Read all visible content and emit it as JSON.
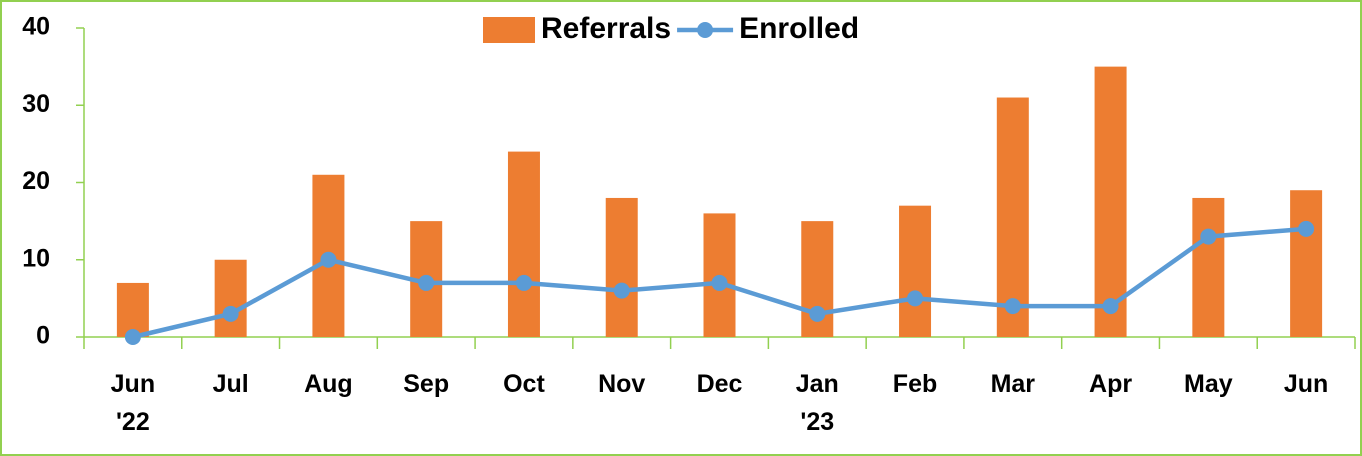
{
  "chart_data": {
    "type": "bar-line",
    "categories": [
      "Jun '22",
      "Jul",
      "Aug",
      "Sep",
      "Oct",
      "Nov",
      "Dec",
      "Jan '23",
      "Feb",
      "Mar",
      "Apr",
      "May",
      "Jun"
    ],
    "series": [
      {
        "name": "Referrals",
        "type": "bar",
        "color": "#ed7d31",
        "values": [
          7,
          10,
          21,
          15,
          24,
          18,
          16,
          15,
          17,
          31,
          35,
          18,
          19
        ]
      },
      {
        "name": "Enrolled",
        "type": "line",
        "color": "#5b9bd5",
        "values": [
          0,
          3,
          10,
          7,
          7,
          6,
          7,
          3,
          5,
          4,
          4,
          13,
          14
        ]
      }
    ],
    "ylim": [
      0,
      40
    ],
    "yticks": [
      0,
      10,
      20,
      30,
      40
    ],
    "grid": false,
    "legend": "top"
  }
}
